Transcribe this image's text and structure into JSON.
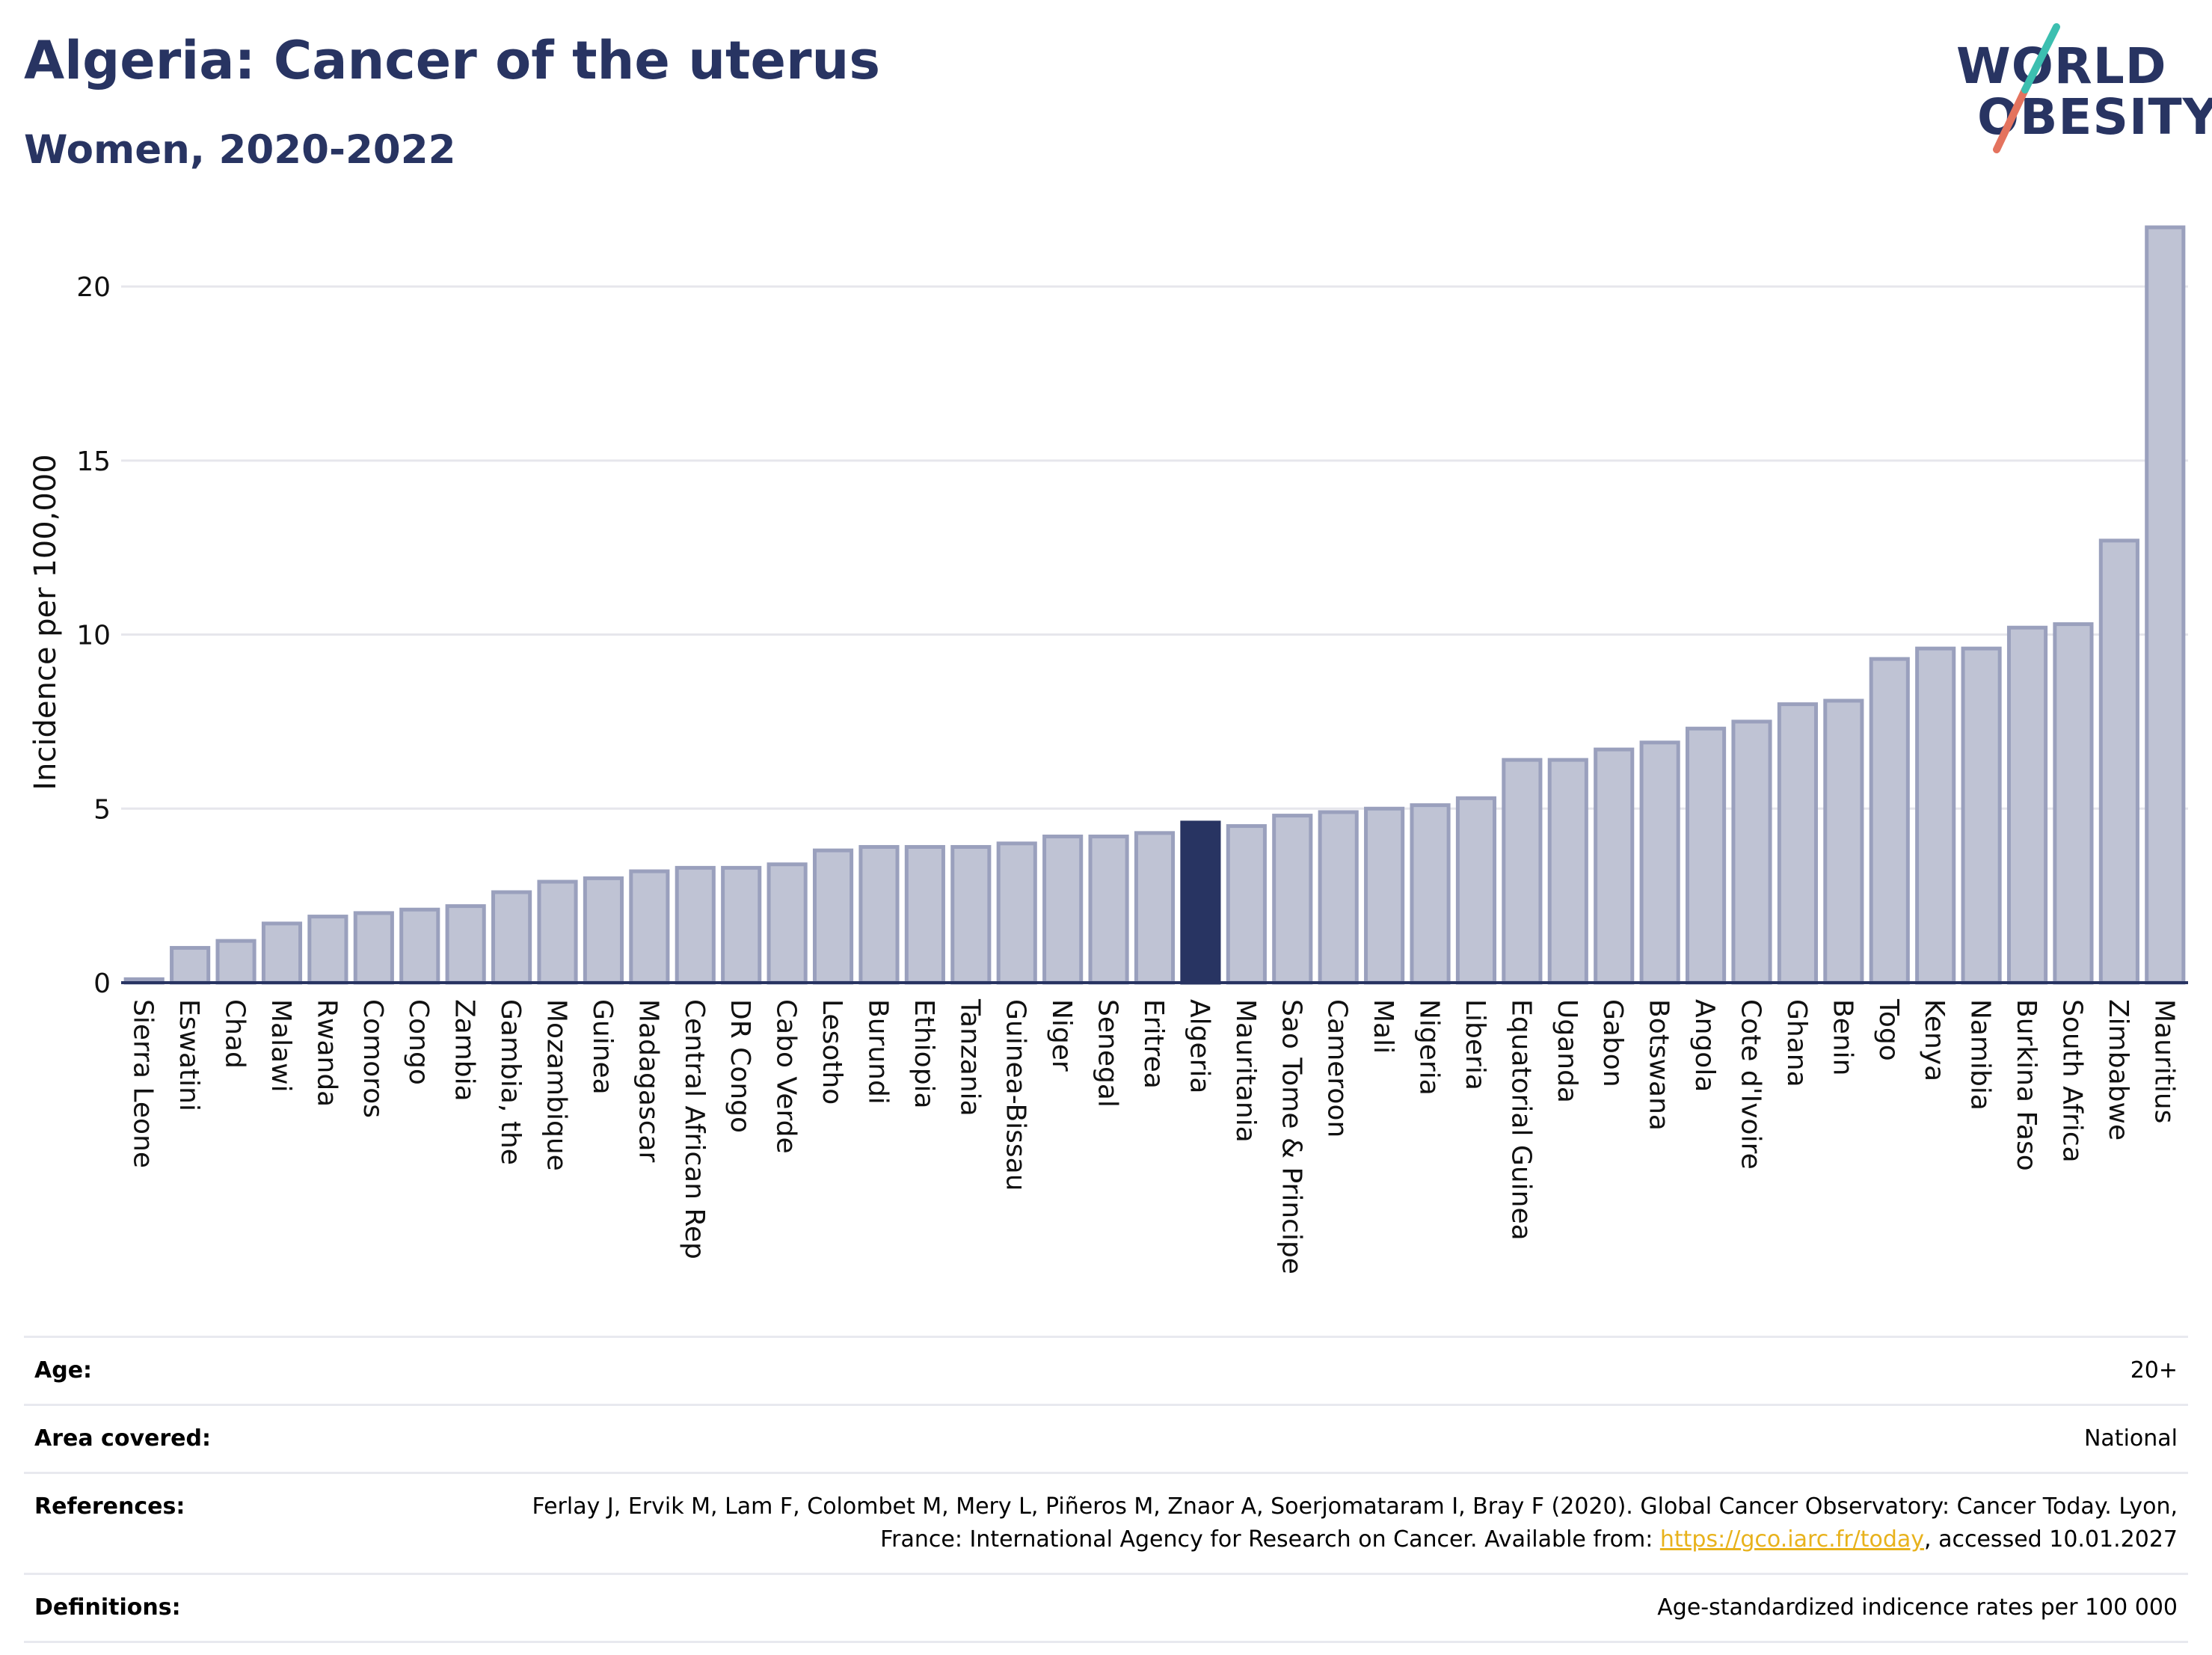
{
  "header": {
    "title": "Algeria: Cancer of the uterus",
    "subtitle": "Women, 2020-2022"
  },
  "logo": {
    "line1": "WORLD",
    "line2": "OBESITY"
  },
  "colors": {
    "bar": "#bfc3d4",
    "bar_border": "#9aa0bd",
    "highlight": "#283462",
    "title": "#283462",
    "link": "#e8b21c"
  },
  "chart_data": {
    "type": "bar",
    "ylabel": "Incidence per 100,000",
    "ylim": [
      0,
      22
    ],
    "yticks": [
      0,
      5,
      10,
      15,
      20
    ],
    "grid": true,
    "highlight": "Algeria",
    "categories": [
      "Sierra Leone",
      "Eswatini",
      "Chad",
      "Malawi",
      "Rwanda",
      "Comoros",
      "Congo",
      "Zambia",
      "Gambia, the",
      "Mozambique",
      "Guinea",
      "Madagascar",
      "Central African Rep",
      "DR Congo",
      "Cabo Verde",
      "Lesotho",
      "Burundi",
      "Ethiopia",
      "Tanzania",
      "Guinea-Bissau",
      "Niger",
      "Senegal",
      "Eritrea",
      "Algeria",
      "Mauritania",
      "Sao Tome & Principe",
      "Cameroon",
      "Mali",
      "Nigeria",
      "Liberia",
      "Equatorial Guinea",
      "Uganda",
      "Gabon",
      "Botswana",
      "Angola",
      "Cote d'Ivoire",
      "Ghana",
      "Benin",
      "Togo",
      "Kenya",
      "Namibia",
      "Burkina Faso",
      "South Africa",
      "Zimbabwe",
      "Mauritius"
    ],
    "values": [
      0.1,
      1.0,
      1.2,
      1.7,
      1.9,
      2.0,
      2.1,
      2.2,
      2.6,
      2.9,
      3.0,
      3.2,
      3.3,
      3.3,
      3.4,
      3.8,
      3.9,
      3.9,
      3.9,
      4.0,
      4.2,
      4.2,
      4.3,
      4.6,
      4.5,
      4.8,
      4.9,
      5.0,
      5.1,
      5.3,
      6.4,
      6.4,
      6.7,
      6.9,
      7.3,
      7.5,
      8.0,
      8.1,
      9.3,
      9.6,
      9.6,
      10.2,
      10.3,
      12.7,
      21.7
    ]
  },
  "meta": [
    {
      "key": "Age:",
      "value": "20+"
    },
    {
      "key": "Area covered:",
      "value": "National"
    },
    {
      "key": "References:",
      "value": "Ferlay J, Ervik M, Lam F, Colombet M, Mery L, Piñeros M, Znaor A, Soerjomataram I, Bray F (2020). Global Cancer Observatory: Cancer Today. Lyon, France: International Agency for Research on Cancer. Available from: ",
      "link": "https://gco.iarc.fr/today",
      "suffix": ", accessed 10.01.2027"
    },
    {
      "key": "Definitions:",
      "value": "Age-standardized indicence rates per 100 000"
    }
  ]
}
